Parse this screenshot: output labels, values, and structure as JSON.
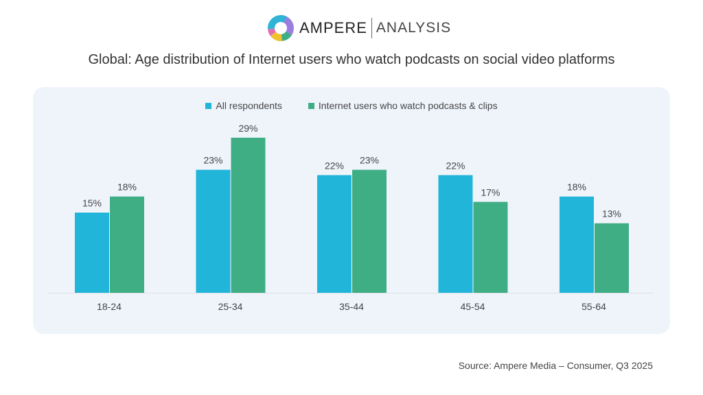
{
  "logo": {
    "brand": "AMPERE",
    "sub": "ANALYSIS"
  },
  "title": "Global: Age distribution of Internet users who watch podcasts on social video platforms",
  "source": "Source: Ampere Media – Consumer, Q3 2025",
  "chart_data": {
    "type": "bar",
    "categories": [
      "18-24",
      "25-34",
      "35-44",
      "45-54",
      "55-64"
    ],
    "series": [
      {
        "name": "All respondents",
        "values": [
          15,
          23,
          22,
          22,
          18
        ],
        "color": "#22b5da"
      },
      {
        "name": "Internet users who watch podcasts & clips",
        "values": [
          18,
          29,
          23,
          17,
          13
        ],
        "color": "#3fae84"
      }
    ],
    "value_format": "%",
    "legend": "top-center",
    "grid": false
  }
}
